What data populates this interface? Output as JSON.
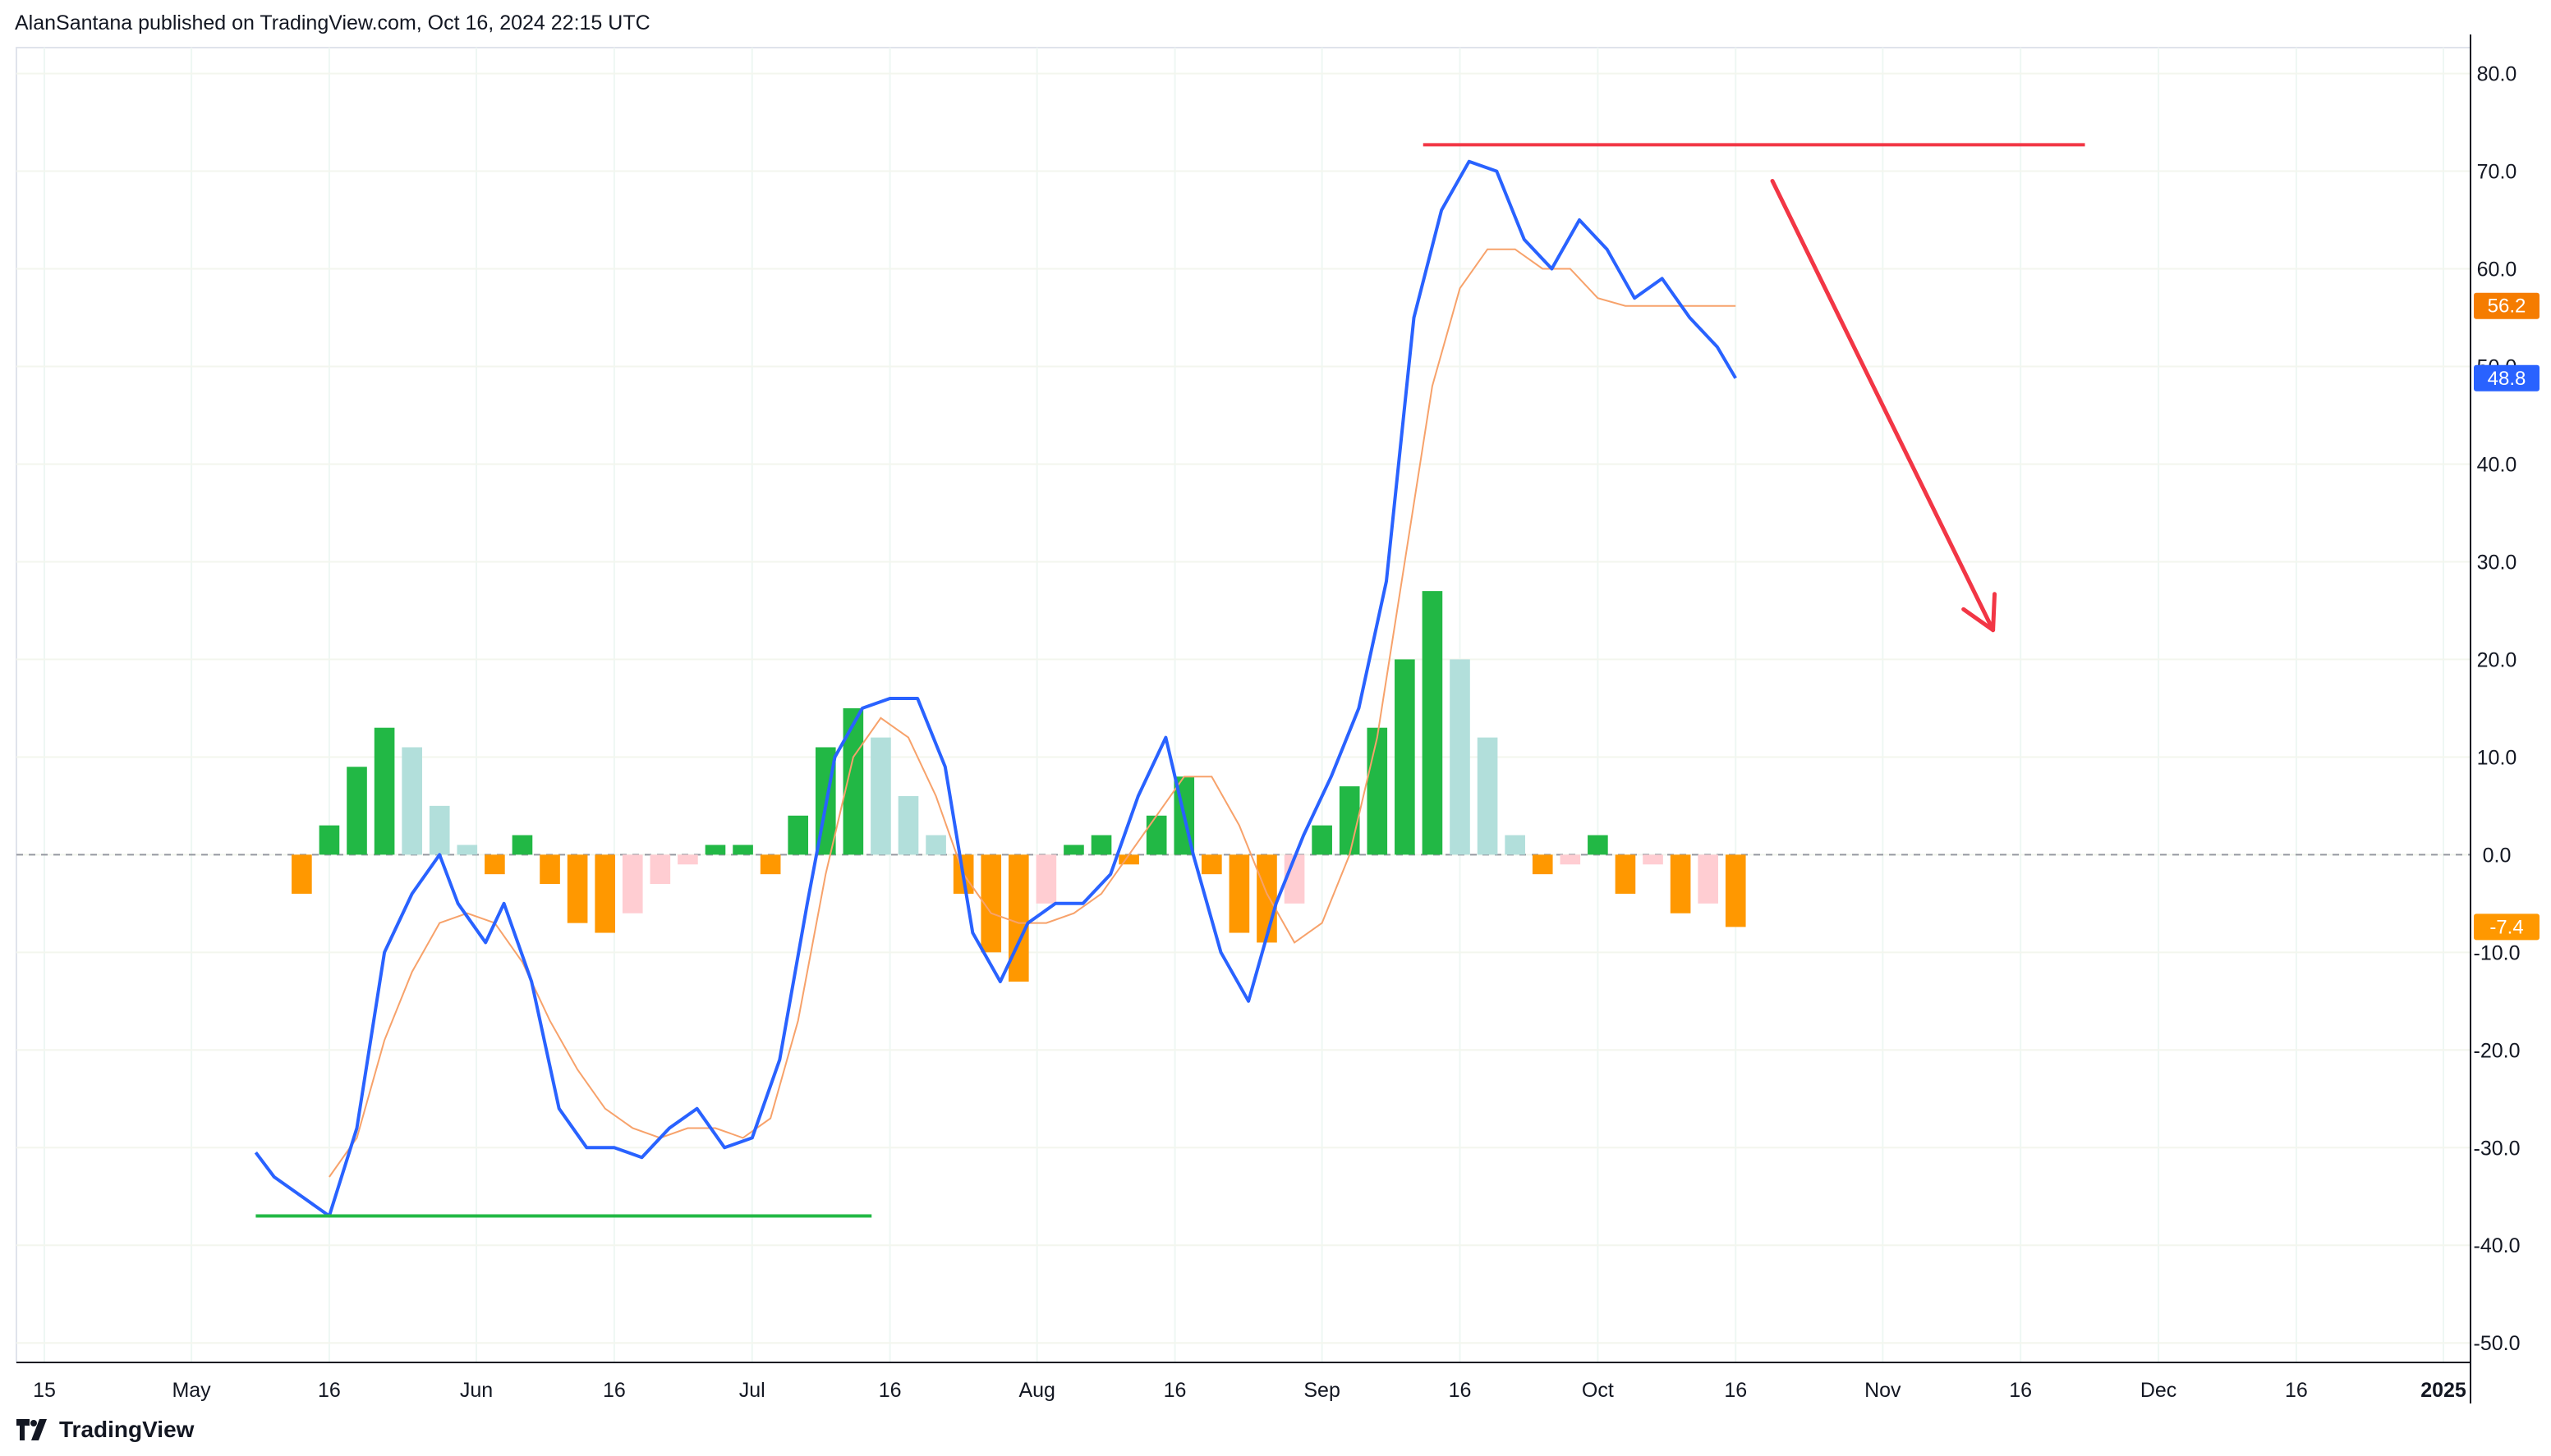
{
  "header": {
    "publish_info": "AlanSantana published on TradingView.com, Oct 16, 2024 22:15 UTC"
  },
  "footer": {
    "brand": "TradingView"
  },
  "colors": {
    "line_main": "#2962ff",
    "line_signal": "#f7a26b",
    "hist_pos_rising": "#22b845",
    "hist_pos_falling": "#b2dfdb",
    "hist_neg_falling": "#ff9800",
    "hist_neg_rising": "#ffcdd2",
    "resistance": "#f23645",
    "support": "#22b845",
    "arrow": "#f23645"
  },
  "chart_data": {
    "type": "line",
    "x_axis": {
      "tick_labels": [
        "15",
        "May",
        "16",
        "Jun",
        "16",
        "Jul",
        "16",
        "Aug",
        "16",
        "Sep",
        "16",
        "Oct",
        "16",
        "Nov",
        "16",
        "Dec",
        "16",
        "2025"
      ],
      "tick_dates": [
        "2024-04-15",
        "2024-05-01",
        "2024-05-16",
        "2024-06-01",
        "2024-06-16",
        "2024-07-01",
        "2024-07-16",
        "2024-08-01",
        "2024-08-16",
        "2024-09-01",
        "2024-09-16",
        "2024-10-01",
        "2024-10-16",
        "2024-11-01",
        "2024-11-16",
        "2024-12-01",
        "2024-12-16",
        "2025-01-01"
      ]
    },
    "y_axis": {
      "tick_labels": [
        "80.0",
        "70.0",
        "60.0",
        "50.0",
        "40.0",
        "30.0",
        "20.0",
        "10.0",
        "0.0",
        "-10.0",
        "-20.0",
        "-30.0",
        "-40.0",
        "-50.0"
      ],
      "ylim": [
        -52,
        84
      ],
      "grid": true
    },
    "zero_line": 0,
    "series": [
      {
        "role": "main",
        "x": [
          "2024-05-08",
          "2024-05-10",
          "2024-05-13",
          "2024-05-16",
          "2024-05-19",
          "2024-05-22",
          "2024-05-25",
          "2024-05-28",
          "2024-05-30",
          "2024-06-02",
          "2024-06-04",
          "2024-06-07",
          "2024-06-10",
          "2024-06-13",
          "2024-06-16",
          "2024-06-19",
          "2024-06-22",
          "2024-06-25",
          "2024-06-28",
          "2024-07-01",
          "2024-07-04",
          "2024-07-07",
          "2024-07-10",
          "2024-07-13",
          "2024-07-16",
          "2024-07-19",
          "2024-07-22",
          "2024-07-25",
          "2024-07-28",
          "2024-07-31",
          "2024-08-03",
          "2024-08-06",
          "2024-08-09",
          "2024-08-12",
          "2024-08-15",
          "2024-08-18",
          "2024-08-21",
          "2024-08-24",
          "2024-08-27",
          "2024-08-30",
          "2024-09-02",
          "2024-09-05",
          "2024-09-08",
          "2024-09-11",
          "2024-09-14",
          "2024-09-17",
          "2024-09-20",
          "2024-09-23",
          "2024-09-26",
          "2024-09-29",
          "2024-10-02",
          "2024-10-05",
          "2024-10-08",
          "2024-10-11",
          "2024-10-14",
          "2024-10-16"
        ],
        "values": [
          -30.5,
          -33,
          -35,
          -37,
          -28,
          -10,
          -4,
          0,
          -5,
          -9,
          -5,
          -13,
          -26,
          -30,
          -30,
          -31,
          -28,
          -26,
          -30,
          -29,
          -21,
          -5,
          10,
          15,
          16,
          16,
          9,
          -8,
          -13,
          -7,
          -5,
          -5,
          -2,
          6,
          12,
          0,
          -10,
          -15,
          -5,
          2,
          8,
          15,
          28,
          55,
          66,
          71,
          70,
          63,
          60,
          65,
          62,
          57,
          59,
          55,
          52,
          48.8
        ]
      },
      {
        "role": "signal",
        "x": [
          "2024-05-16",
          "2024-05-19",
          "2024-05-22",
          "2024-05-25",
          "2024-05-28",
          "2024-05-31",
          "2024-06-03",
          "2024-06-06",
          "2024-06-09",
          "2024-06-12",
          "2024-06-15",
          "2024-06-18",
          "2024-06-21",
          "2024-06-24",
          "2024-06-27",
          "2024-06-30",
          "2024-07-03",
          "2024-07-06",
          "2024-07-09",
          "2024-07-12",
          "2024-07-15",
          "2024-07-18",
          "2024-07-21",
          "2024-07-24",
          "2024-07-27",
          "2024-07-30",
          "2024-08-02",
          "2024-08-05",
          "2024-08-08",
          "2024-08-11",
          "2024-08-14",
          "2024-08-17",
          "2024-08-20",
          "2024-08-23",
          "2024-08-26",
          "2024-08-29",
          "2024-09-01",
          "2024-09-04",
          "2024-09-07",
          "2024-09-10",
          "2024-09-13",
          "2024-09-16",
          "2024-09-19",
          "2024-09-22",
          "2024-09-25",
          "2024-09-28",
          "2024-10-01",
          "2024-10-04",
          "2024-10-07",
          "2024-10-10",
          "2024-10-13",
          "2024-10-16"
        ],
        "values": [
          -33,
          -29,
          -19,
          -12,
          -7,
          -6,
          -7,
          -11,
          -17,
          -22,
          -26,
          -28,
          -29,
          -28,
          -28,
          -29,
          -27,
          -17,
          -2,
          10,
          14,
          12,
          6,
          -2,
          -6,
          -7,
          -7,
          -6,
          -4,
          0,
          4,
          8,
          8,
          3,
          -4,
          -9,
          -7,
          0,
          12,
          30,
          48,
          58,
          62,
          62,
          60,
          60,
          57,
          56.2,
          56.2,
          56.2,
          56.2,
          56.2
        ]
      },
      {
        "role": "histogram",
        "x": [
          "2024-05-13",
          "2024-05-16",
          "2024-05-19",
          "2024-05-22",
          "2024-05-25",
          "2024-05-28",
          "2024-05-31",
          "2024-06-03",
          "2024-06-06",
          "2024-06-09",
          "2024-06-12",
          "2024-06-15",
          "2024-06-18",
          "2024-06-21",
          "2024-06-24",
          "2024-06-27",
          "2024-06-30",
          "2024-07-03",
          "2024-07-06",
          "2024-07-09",
          "2024-07-12",
          "2024-07-15",
          "2024-07-18",
          "2024-07-21",
          "2024-07-24",
          "2024-07-27",
          "2024-07-30",
          "2024-08-02",
          "2024-08-05",
          "2024-08-08",
          "2024-08-11",
          "2024-08-14",
          "2024-08-17",
          "2024-08-20",
          "2024-08-23",
          "2024-08-26",
          "2024-08-29",
          "2024-09-01",
          "2024-09-04",
          "2024-09-07",
          "2024-09-10",
          "2024-09-13",
          "2024-09-16",
          "2024-09-19",
          "2024-09-22",
          "2024-09-25",
          "2024-09-28",
          "2024-10-01",
          "2024-10-04",
          "2024-10-07",
          "2024-10-10",
          "2024-10-13",
          "2024-10-16"
        ],
        "values": [
          -4,
          3,
          9,
          13,
          11,
          5,
          1,
          -2,
          2,
          -3,
          -7,
          -8,
          -6,
          -3,
          -1,
          1,
          1,
          -2,
          4,
          11,
          15,
          12,
          6,
          2,
          -4,
          -10,
          -13,
          -5,
          1,
          2,
          -1,
          4,
          8,
          -2,
          -8,
          -9,
          -5,
          3,
          7,
          13,
          20,
          27,
          20,
          12,
          2,
          -2,
          -1,
          2,
          -4,
          -1,
          -6,
          -5,
          -7.4
        ]
      }
    ],
    "last_values": {
      "signal": "56.2",
      "main": "48.8",
      "histogram": "-7.4"
    },
    "annotations": [
      {
        "type": "horizontal_line",
        "role": "resistance",
        "y": 72.7,
        "x_start": "2024-09-12",
        "x_end": "2024-11-23"
      },
      {
        "type": "horizontal_line",
        "role": "support",
        "y": -37,
        "x_start": "2024-05-08",
        "x_end": "2024-07-14"
      },
      {
        "type": "arrow",
        "role": "bearish_projection",
        "from": {
          "x": "2024-10-20",
          "y": 69
        },
        "to": {
          "x": "2024-11-13",
          "y": 23
        }
      }
    ]
  }
}
